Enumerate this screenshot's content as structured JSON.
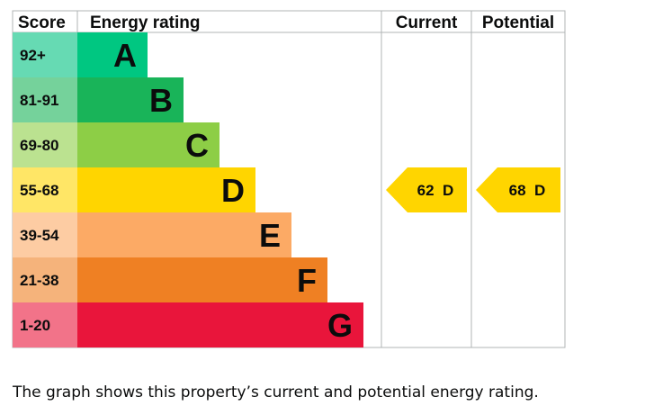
{
  "chart_data": {
    "type": "bar",
    "headers": {
      "score": "Score",
      "rating": "Energy rating",
      "current": "Current",
      "potential": "Potential"
    },
    "bands": [
      {
        "score": "92+",
        "letter": "A",
        "color": "#00c781",
        "score_bg": "#66dab3"
      },
      {
        "score": "81-91",
        "letter": "B",
        "color": "#19b459",
        "score_bg": "#75d29b"
      },
      {
        "score": "69-80",
        "letter": "C",
        "color": "#8dce46",
        "score_bg": "#bbe290"
      },
      {
        "score": "55-68",
        "letter": "D",
        "color": "#ffd500",
        "score_bg": "#ffe666"
      },
      {
        "score": "39-54",
        "letter": "E",
        "color": "#fcaa65",
        "score_bg": "#fdcca3"
      },
      {
        "score": "21-38",
        "letter": "F",
        "color": "#ef8023",
        "score_bg": "#f5b37b"
      },
      {
        "score": "1-20",
        "letter": "G",
        "color": "#e9153b",
        "score_bg": "#f27389"
      }
    ],
    "current": {
      "value": 62,
      "letter": "D",
      "label": "62  D"
    },
    "potential": {
      "value": 68,
      "letter": "D",
      "label": "68  D"
    }
  },
  "caption": "The graph shows this property’s current and potential energy rating."
}
